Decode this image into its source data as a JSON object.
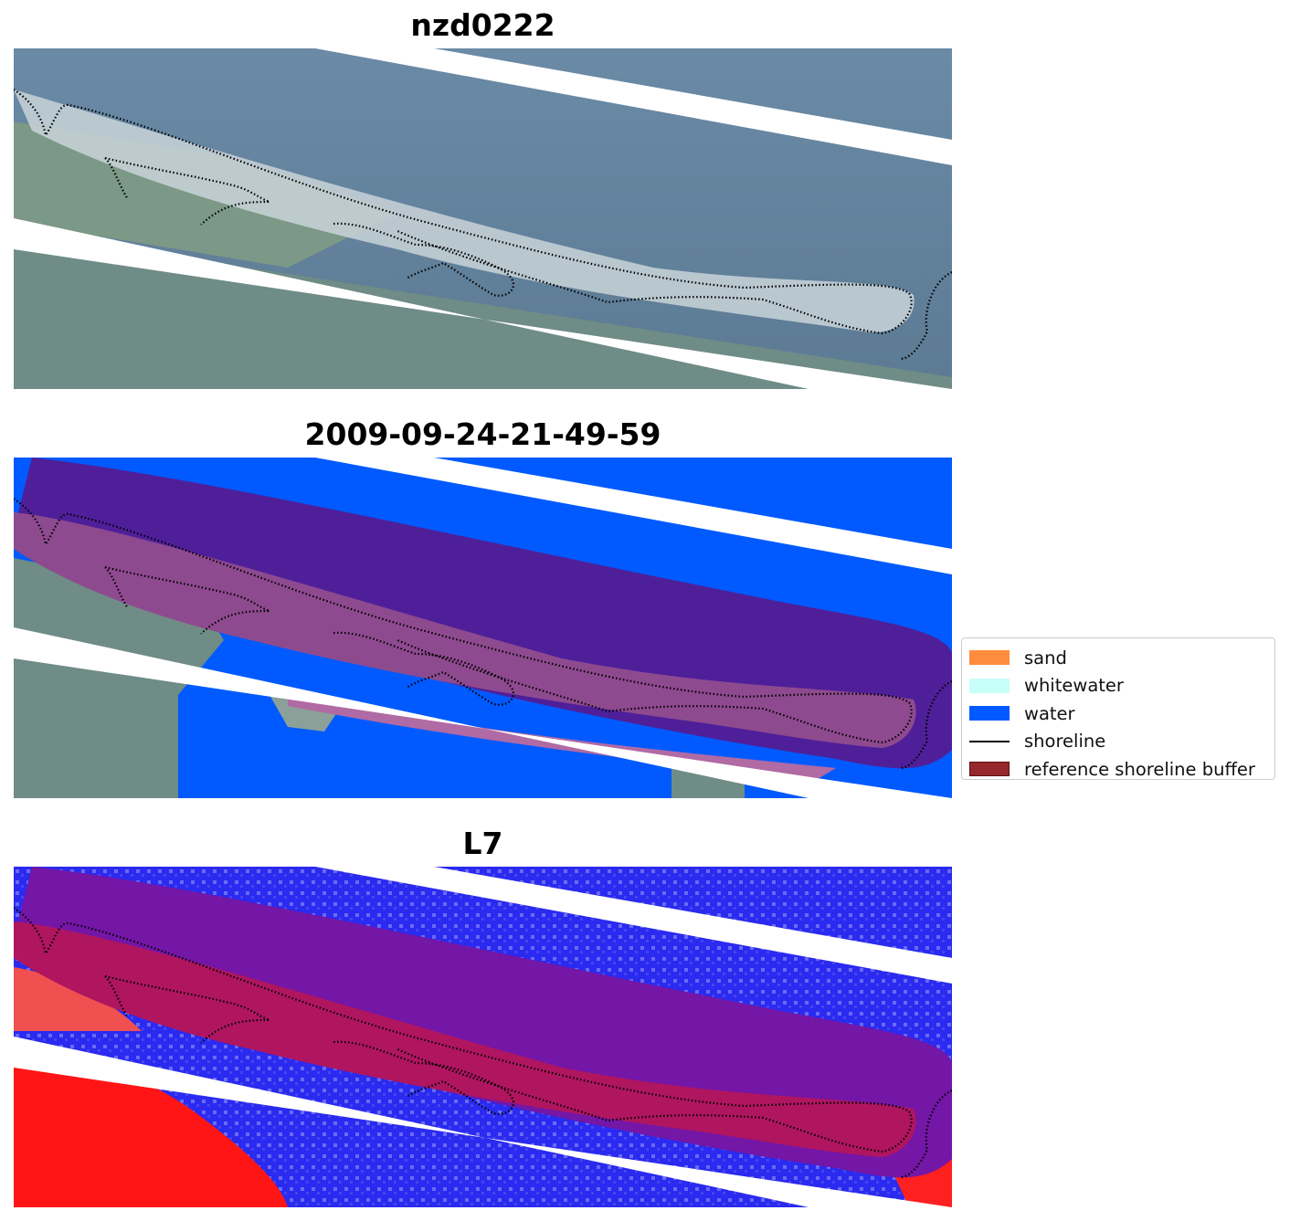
{
  "panels": [
    {
      "title": "nzd0222"
    },
    {
      "title": "2009-09-24-21-49-59"
    },
    {
      "title": "L7"
    }
  ],
  "legend": {
    "items": [
      {
        "label": "sand",
        "color": "#ff8c3c"
      },
      {
        "label": "whitewater",
        "color": "#c8fff8"
      },
      {
        "label": "water",
        "color": "#005aff"
      },
      {
        "label": "shoreline",
        "color": "#000000"
      },
      {
        "label": "reference shoreline buffer",
        "color": "#96282b"
      }
    ]
  }
}
